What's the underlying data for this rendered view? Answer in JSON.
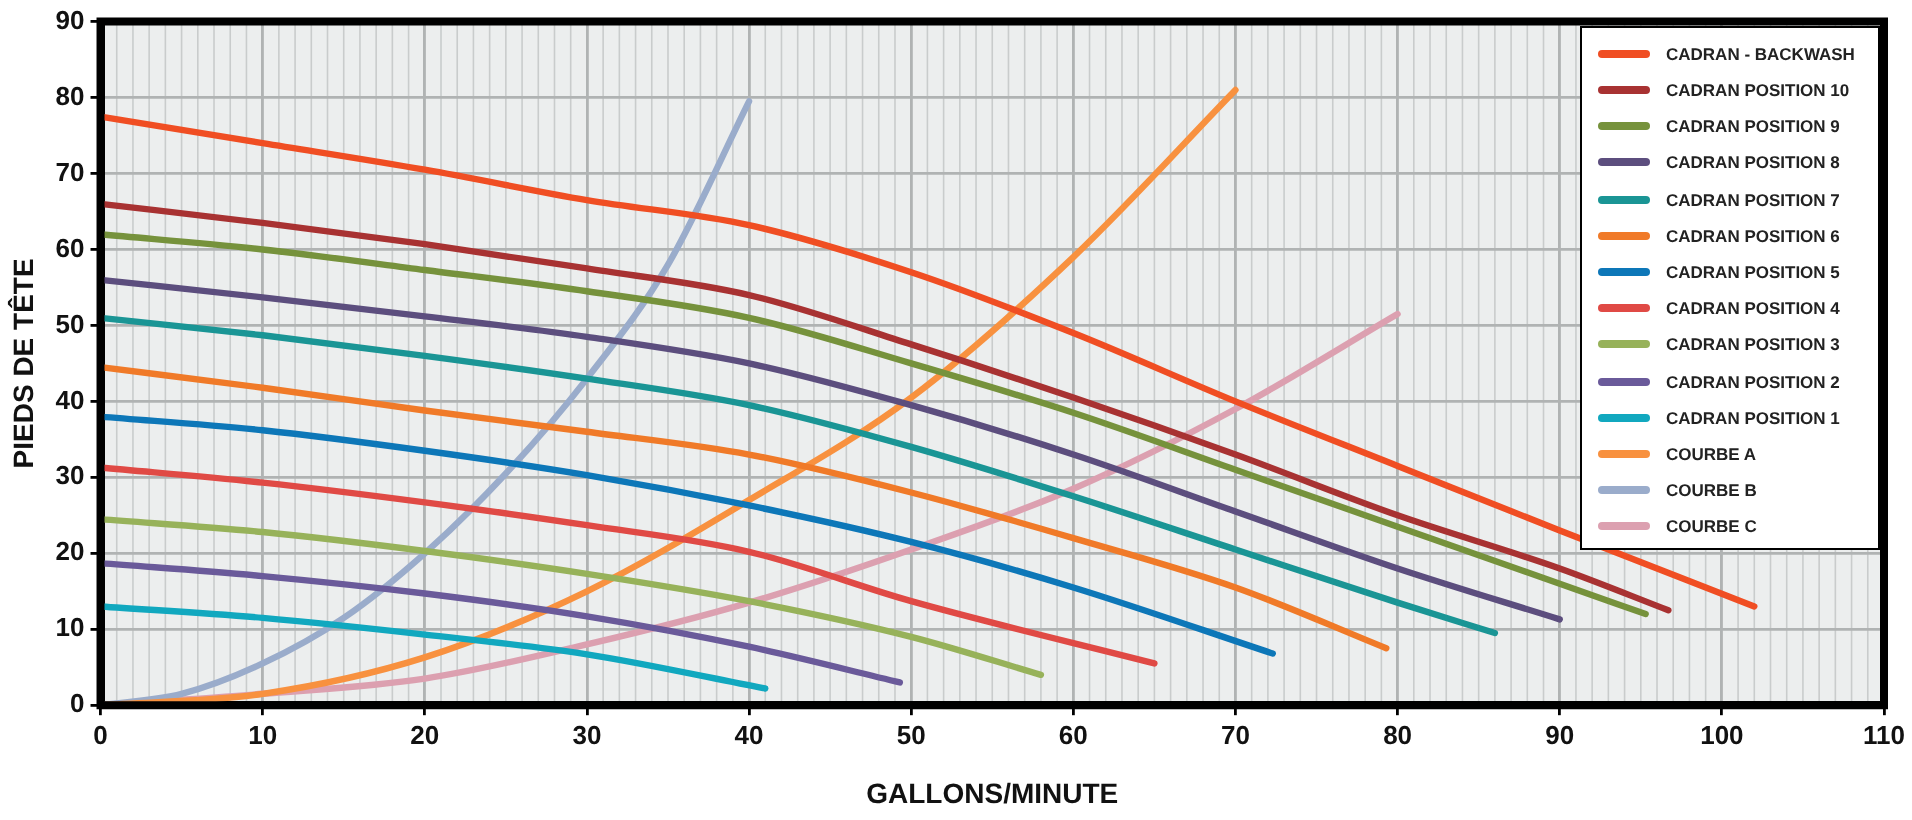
{
  "chart_data": {
    "type": "line",
    "xlabel": "GALLONS/MINUTE",
    "ylabel": "PIEDS DE TÊTE",
    "xlim": [
      0,
      110
    ],
    "xticks": [
      0,
      10,
      20,
      30,
      40,
      50,
      60,
      70,
      80,
      90,
      100,
      110
    ],
    "ylim": [
      0,
      90
    ],
    "yticks": [
      0,
      10,
      20,
      30,
      40,
      50,
      60,
      70,
      80,
      90
    ],
    "grid": true,
    "legend": "top right",
    "marker": "none",
    "line_style": "solid",
    "series": [
      {
        "name": "CADRAN - BACKWASH",
        "color": "#f04e23",
        "x": [
          0,
          10,
          20,
          30,
          40,
          50,
          60,
          70,
          80,
          90,
          102
        ],
        "values": [
          77.5,
          74,
          70.5,
          66.5,
          63.2,
          57,
          49,
          40,
          31.5,
          23,
          13
        ]
      },
      {
        "name": "CADRAN POSITION 10",
        "color": "#a83232",
        "x": [
          0,
          10,
          20,
          30,
          40,
          50,
          60,
          70,
          80,
          90,
          96.7
        ],
        "values": [
          66,
          63.5,
          60.7,
          57.5,
          54,
          47.5,
          40.5,
          33,
          25,
          18,
          12.5
        ]
      },
      {
        "name": "CADRAN POSITION 9",
        "color": "#76923c",
        "x": [
          0,
          10,
          20,
          30,
          40,
          50,
          60,
          70,
          80,
          90,
          95.3
        ],
        "values": [
          62,
          60,
          57.3,
          54.5,
          51,
          45,
          38.5,
          31,
          23.5,
          16,
          12
        ]
      },
      {
        "name": "CADRAN POSITION 8",
        "color": "#5c4e7e",
        "x": [
          0,
          10,
          20,
          30,
          40,
          50,
          60,
          70,
          80,
          90
        ],
        "values": [
          56,
          53.7,
          51.2,
          48.5,
          45,
          39.5,
          33,
          25.5,
          18,
          11.3
        ]
      },
      {
        "name": "CADRAN POSITION 7",
        "color": "#1a9595",
        "x": [
          0,
          10,
          20,
          30,
          40,
          50,
          60,
          70,
          80,
          86
        ],
        "values": [
          51,
          48.7,
          46,
          43,
          39.5,
          34,
          27.5,
          20.5,
          13.5,
          9.5
        ]
      },
      {
        "name": "CADRAN POSITION 6",
        "color": "#f07a28",
        "x": [
          0,
          10,
          20,
          30,
          40,
          50,
          60,
          70,
          79.3
        ],
        "values": [
          44.5,
          41.8,
          38.8,
          36,
          33,
          28,
          22,
          15.5,
          7.5
        ]
      },
      {
        "name": "CADRAN POSITION 5",
        "color": "#0d77b8",
        "x": [
          0,
          10,
          20,
          30,
          40,
          50,
          60,
          72.3
        ],
        "values": [
          38,
          36.2,
          33.5,
          30.3,
          26.3,
          21.5,
          15.5,
          6.8
        ]
      },
      {
        "name": "CADRAN POSITION 4",
        "color": "#e04a45",
        "x": [
          0,
          10,
          20,
          30,
          40,
          50,
          65
        ],
        "values": [
          31.3,
          29.3,
          26.7,
          23.7,
          20.2,
          13.7,
          5.5
        ]
      },
      {
        "name": "CADRAN POSITION 3",
        "color": "#97b25a",
        "x": [
          0,
          10,
          20,
          30,
          40,
          50,
          58
        ],
        "values": [
          24.5,
          22.8,
          20.3,
          17.3,
          13.7,
          9,
          4
        ]
      },
      {
        "name": "CADRAN POSITION 2",
        "color": "#6a5a9a",
        "x": [
          0,
          10,
          20,
          30,
          40,
          49.3
        ],
        "values": [
          18.7,
          17,
          14.7,
          11.7,
          7.7,
          3
        ]
      },
      {
        "name": "CADRAN POSITION 1",
        "color": "#11a8bf",
        "x": [
          0,
          10,
          20,
          30,
          41
        ],
        "values": [
          13,
          11.5,
          9.3,
          6.7,
          2.2
        ]
      },
      {
        "name": "COURBE A",
        "color": "#f8913f",
        "x": [
          0,
          10,
          20,
          30,
          40,
          50,
          60,
          70
        ],
        "values": [
          0,
          1.5,
          6.3,
          15,
          27,
          40.5,
          59,
          81
        ]
      },
      {
        "name": "COURBE B",
        "color": "#9aaccb",
        "x": [
          0,
          5,
          10,
          15,
          20,
          25,
          30,
          35,
          40
        ],
        "values": [
          0,
          1.5,
          5.5,
          11.5,
          20,
          30.5,
          43,
          58,
          79.5
        ]
      },
      {
        "name": "COURBE C",
        "color": "#dca0b0",
        "x": [
          0,
          10,
          20,
          30,
          40,
          50,
          60,
          70,
          80
        ],
        "values": [
          0,
          1.5,
          3.5,
          8,
          13.5,
          20.5,
          28.5,
          39,
          51.5
        ]
      }
    ]
  }
}
